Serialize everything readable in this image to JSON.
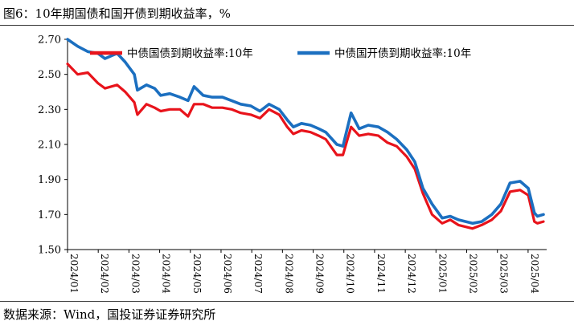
{
  "figure": {
    "title": "图6：10年期国债和国开债到期收益率，%",
    "source": "数据来源：Wind，国投证券证券研究所"
  },
  "colors": {
    "series_1": "#e8131b",
    "series_2": "#1b6fc0"
  },
  "chart_data": {
    "type": "line",
    "title": "",
    "xlabel": "",
    "ylabel": "",
    "ylim": [
      1.5,
      2.7
    ],
    "y_ticks": [
      "2.70",
      "2.50",
      "2.30",
      "2.10",
      "1.90",
      "1.70",
      "1.50"
    ],
    "x_ticks": [
      "2024/01",
      "2024/02",
      "2024/03",
      "2024/04",
      "2024/05",
      "2024/06",
      "2024/07",
      "2024/08",
      "2024/09",
      "2024/10",
      "2024/11",
      "2024/12",
      "2025/01",
      "2025/02",
      "2025/03",
      "2025/04"
    ],
    "grid": false,
    "legend_position": "top",
    "x": [
      "2024-01-02",
      "2024-01-12",
      "2024-01-22",
      "2024-02-01",
      "2024-02-08",
      "2024-02-20",
      "2024-02-28",
      "2024-03-08",
      "2024-03-11",
      "2024-03-20",
      "2024-03-28",
      "2024-04-03",
      "2024-04-12",
      "2024-04-22",
      "2024-04-30",
      "2024-05-06",
      "2024-05-15",
      "2024-05-24",
      "2024-06-03",
      "2024-06-12",
      "2024-06-21",
      "2024-07-01",
      "2024-07-10",
      "2024-07-19",
      "2024-07-29",
      "2024-08-06",
      "2024-08-12",
      "2024-08-20",
      "2024-08-29",
      "2024-09-06",
      "2024-09-13",
      "2024-09-24",
      "2024-09-30",
      "2024-10-08",
      "2024-10-16",
      "2024-10-25",
      "2024-11-04",
      "2024-11-13",
      "2024-11-22",
      "2024-12-02",
      "2024-12-10",
      "2024-12-18",
      "2024-12-27",
      "2025-01-06",
      "2025-01-14",
      "2025-01-22",
      "2025-02-05",
      "2025-02-14",
      "2025-02-24",
      "2025-03-05",
      "2025-03-14",
      "2025-03-24",
      "2025-04-01",
      "2025-04-07",
      "2025-04-10",
      "2025-04-16"
    ],
    "series": [
      {
        "name": "中债国债到期收益率:10年",
        "values": [
          2.56,
          2.5,
          2.51,
          2.45,
          2.42,
          2.44,
          2.4,
          2.34,
          2.27,
          2.33,
          2.31,
          2.29,
          2.3,
          2.3,
          2.26,
          2.33,
          2.33,
          2.31,
          2.31,
          2.3,
          2.28,
          2.27,
          2.25,
          2.3,
          2.27,
          2.2,
          2.16,
          2.18,
          2.17,
          2.15,
          2.13,
          2.04,
          2.04,
          2.2,
          2.15,
          2.16,
          2.15,
          2.11,
          2.09,
          2.03,
          1.96,
          1.82,
          1.7,
          1.65,
          1.67,
          1.64,
          1.62,
          1.64,
          1.67,
          1.72,
          1.83,
          1.84,
          1.81,
          1.66,
          1.65,
          1.66
        ]
      },
      {
        "name": "中债国开债到期收益率:10年",
        "values": [
          2.7,
          2.66,
          2.63,
          2.62,
          2.59,
          2.62,
          2.57,
          2.5,
          2.41,
          2.44,
          2.42,
          2.38,
          2.39,
          2.37,
          2.35,
          2.43,
          2.38,
          2.37,
          2.37,
          2.35,
          2.33,
          2.32,
          2.29,
          2.33,
          2.3,
          2.24,
          2.2,
          2.22,
          2.21,
          2.19,
          2.17,
          2.1,
          2.09,
          2.28,
          2.19,
          2.21,
          2.2,
          2.17,
          2.13,
          2.07,
          2.0,
          1.85,
          1.76,
          1.68,
          1.69,
          1.67,
          1.65,
          1.66,
          1.7,
          1.76,
          1.88,
          1.89,
          1.85,
          1.71,
          1.69,
          1.7
        ]
      }
    ]
  }
}
